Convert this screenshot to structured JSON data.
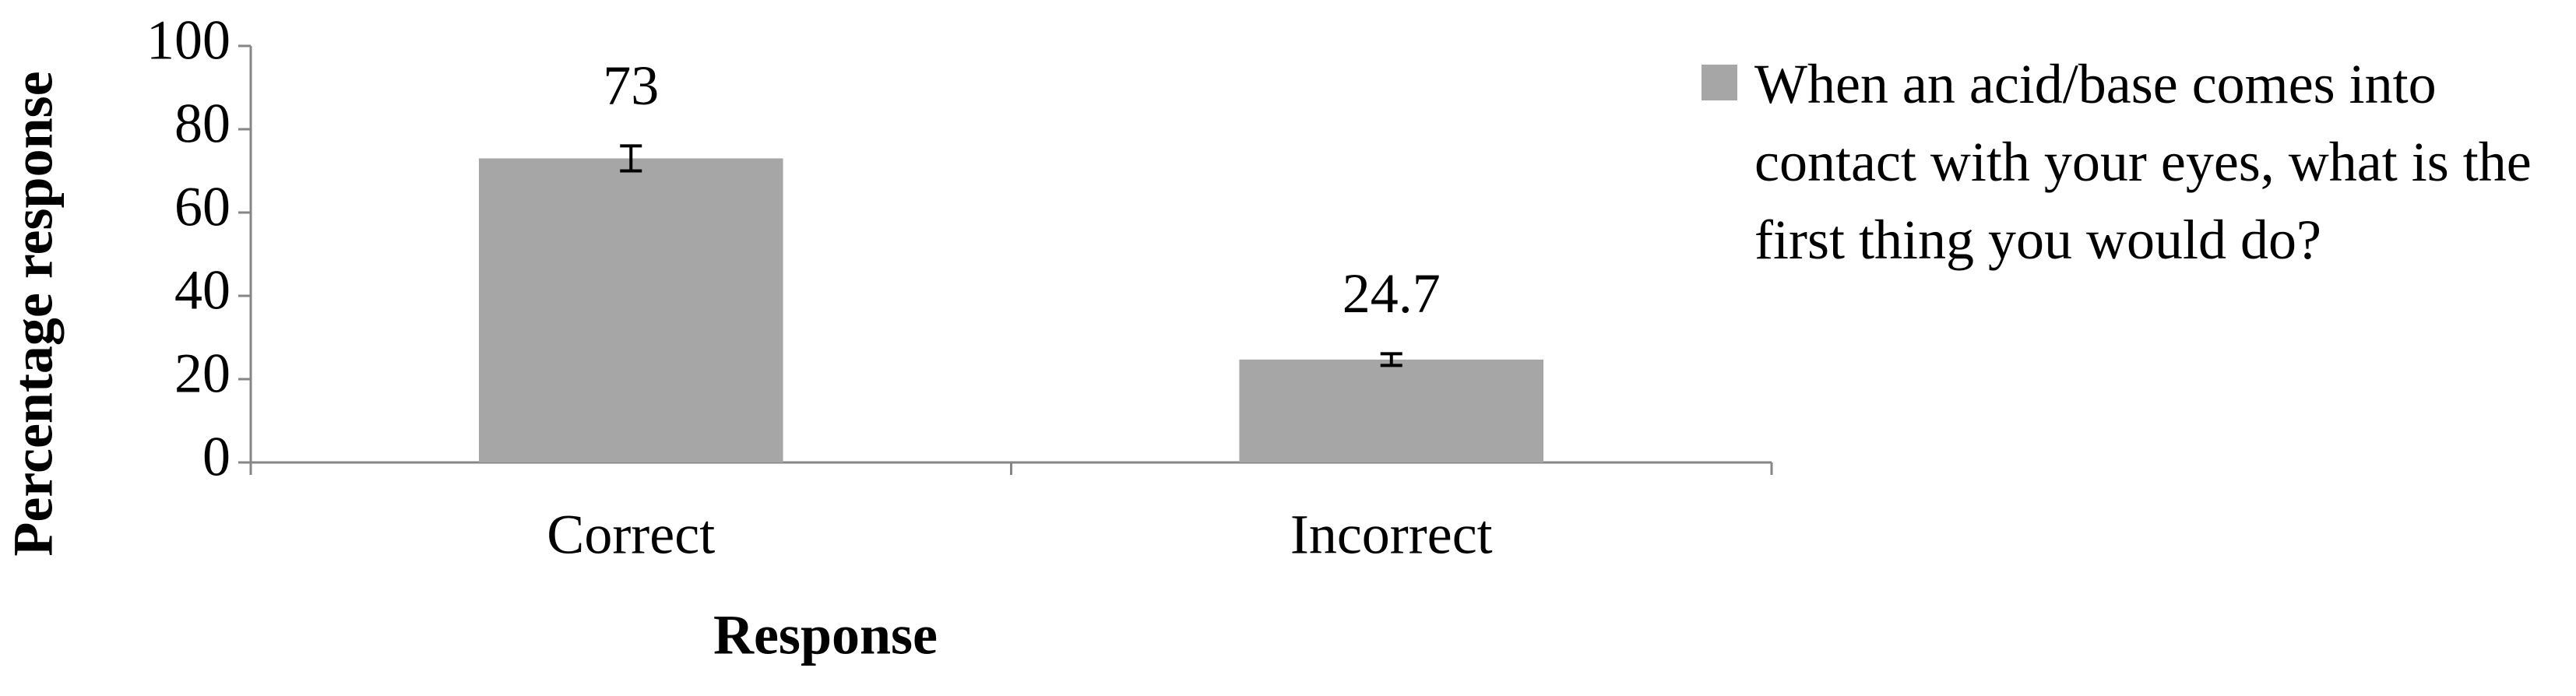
{
  "chart_data": {
    "type": "bar",
    "x_label": "Response",
    "y_label": "Percentage response",
    "categories": [
      "Correct",
      "Incorrect"
    ],
    "series": [
      {
        "name": "When an acid/base comes into contact with your eyes, what is the first thing you would do?",
        "color": "#a6a6a6",
        "values": [
          73,
          24.7
        ],
        "errors": [
          3,
          1.4
        ]
      }
    ],
    "ylim": [
      0,
      100
    ],
    "yticks": [
      0,
      20,
      40,
      60,
      80,
      100
    ],
    "grid": false,
    "legend": "right"
  }
}
